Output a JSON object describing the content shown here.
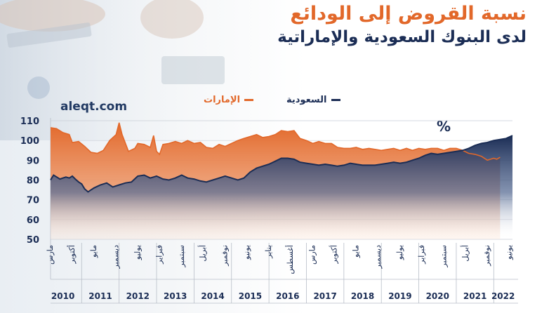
{
  "title": "نسبة القروض إلى الودائع",
  "subtitle": "لدى البنوك السعودية والإماراتية",
  "source": "aleqt.com",
  "unit": "%",
  "colors": {
    "saudi": "#1b2d55",
    "uae": "#e2682a",
    "axis_text": "#1b2d55"
  },
  "chart_data": {
    "type": "area",
    "ylim": [
      50,
      110
    ],
    "yticks": [
      110,
      100,
      90,
      80,
      70,
      60,
      50
    ],
    "grid": true,
    "legend_placement": "top",
    "xlim": [
      2010.17,
      2022.5
    ],
    "x_tick_labels": [
      {
        "x": 2010.17,
        "label": "مارس"
      },
      {
        "x": 2010.75,
        "label": "أكتوبر"
      },
      {
        "x": 2011.33,
        "label": "مايو"
      },
      {
        "x": 2011.92,
        "label": "ديسمبر"
      },
      {
        "x": 2012.5,
        "label": "يوليو"
      },
      {
        "x": 2013.08,
        "label": "فبراير"
      },
      {
        "x": 2013.67,
        "label": "سبتمبر"
      },
      {
        "x": 2014.25,
        "label": "أبريل"
      },
      {
        "x": 2014.83,
        "label": "نوفمبر"
      },
      {
        "x": 2015.42,
        "label": "يونيو"
      },
      {
        "x": 2016.0,
        "label": "يناير"
      },
      {
        "x": 2016.58,
        "label": "أغسطس"
      },
      {
        "x": 2017.17,
        "label": "مارس"
      },
      {
        "x": 2017.75,
        "label": "أكتوبر"
      },
      {
        "x": 2018.33,
        "label": "مايو"
      },
      {
        "x": 2018.92,
        "label": "ديسمبر"
      },
      {
        "x": 2019.5,
        "label": "يوليو"
      },
      {
        "x": 2020.08,
        "label": "فبراير"
      },
      {
        "x": 2020.67,
        "label": "سبتمبر"
      },
      {
        "x": 2021.25,
        "label": "أبريل"
      },
      {
        "x": 2021.83,
        "label": "نوفمبر"
      },
      {
        "x": 2022.42,
        "label": "يونيو"
      }
    ],
    "year_labels": [
      {
        "x": 2010.5,
        "label": "2010"
      },
      {
        "x": 2011.5,
        "label": "2011"
      },
      {
        "x": 2012.5,
        "label": "2012"
      },
      {
        "x": 2013.5,
        "label": "2013"
      },
      {
        "x": 2014.5,
        "label": "2014"
      },
      {
        "x": 2015.5,
        "label": "2015"
      },
      {
        "x": 2016.5,
        "label": "2016"
      },
      {
        "x": 2017.5,
        "label": "2017"
      },
      {
        "x": 2018.5,
        "label": "2018"
      },
      {
        "x": 2019.5,
        "label": "2019"
      },
      {
        "x": 2020.5,
        "label": "2020"
      },
      {
        "x": 2021.5,
        "label": "2021"
      },
      {
        "x": 2022.25,
        "label": "2022"
      }
    ],
    "series": [
      {
        "name": "الإمارات",
        "color": "#e2682a",
        "points": [
          [
            2010.17,
            106.5
          ],
          [
            2010.33,
            106
          ],
          [
            2010.5,
            104
          ],
          [
            2010.67,
            103
          ],
          [
            2010.75,
            99
          ],
          [
            2010.92,
            99.5
          ],
          [
            2011.08,
            97
          ],
          [
            2011.25,
            94
          ],
          [
            2011.42,
            93.5
          ],
          [
            2011.58,
            95
          ],
          [
            2011.75,
            100
          ],
          [
            2011.92,
            103
          ],
          [
            2012.0,
            109
          ],
          [
            2012.08,
            103
          ],
          [
            2012.25,
            94.5
          ],
          [
            2012.42,
            96
          ],
          [
            2012.5,
            98.5
          ],
          [
            2012.67,
            98
          ],
          [
            2012.83,
            96.5
          ],
          [
            2012.92,
            102.5
          ],
          [
            2013.0,
            94.5
          ],
          [
            2013.08,
            93
          ],
          [
            2013.17,
            98
          ],
          [
            2013.33,
            98.5
          ],
          [
            2013.5,
            99.5
          ],
          [
            2013.67,
            98.5
          ],
          [
            2013.83,
            100
          ],
          [
            2014.0,
            98.5
          ],
          [
            2014.17,
            99
          ],
          [
            2014.33,
            96.5
          ],
          [
            2014.5,
            96
          ],
          [
            2014.67,
            98
          ],
          [
            2014.83,
            97
          ],
          [
            2015.0,
            98.5
          ],
          [
            2015.17,
            100
          ],
          [
            2015.33,
            101
          ],
          [
            2015.5,
            102
          ],
          [
            2015.67,
            103
          ],
          [
            2015.83,
            101.5
          ],
          [
            2016.0,
            102
          ],
          [
            2016.17,
            103
          ],
          [
            2016.33,
            105
          ],
          [
            2016.5,
            104.5
          ],
          [
            2016.67,
            105
          ],
          [
            2016.83,
            101
          ],
          [
            2017.0,
            100
          ],
          [
            2017.17,
            98.5
          ],
          [
            2017.33,
            99.5
          ],
          [
            2017.5,
            98.5
          ],
          [
            2017.67,
            98.5
          ],
          [
            2017.83,
            96.5
          ],
          [
            2018.0,
            96
          ],
          [
            2018.17,
            96
          ],
          [
            2018.33,
            96.5
          ],
          [
            2018.5,
            95.5
          ],
          [
            2018.67,
            96
          ],
          [
            2018.83,
            95.5
          ],
          [
            2019.0,
            95
          ],
          [
            2019.17,
            95.5
          ],
          [
            2019.33,
            96
          ],
          [
            2019.5,
            95
          ],
          [
            2019.67,
            96
          ],
          [
            2019.83,
            95
          ],
          [
            2020.0,
            96
          ],
          [
            2020.17,
            95.5
          ],
          [
            2020.33,
            96
          ],
          [
            2020.5,
            96
          ],
          [
            2020.67,
            95
          ],
          [
            2020.83,
            96
          ],
          [
            2021.0,
            96
          ],
          [
            2021.17,
            95
          ],
          [
            2021.33,
            93.5
          ],
          [
            2021.5,
            93
          ],
          [
            2021.67,
            92
          ],
          [
            2021.83,
            90
          ],
          [
            2022.0,
            91
          ],
          [
            2022.08,
            90.5
          ],
          [
            2022.17,
            91.5
          ]
        ]
      },
      {
        "name": "السعودية",
        "color": "#1b2d55",
        "points": [
          [
            2010.17,
            80
          ],
          [
            2010.25,
            82.5
          ],
          [
            2010.42,
            80.5
          ],
          [
            2010.58,
            81.5
          ],
          [
            2010.67,
            81
          ],
          [
            2010.75,
            82
          ],
          [
            2010.83,
            80.5
          ],
          [
            2010.92,
            79
          ],
          [
            2011.0,
            78
          ],
          [
            2011.08,
            75.5
          ],
          [
            2011.17,
            74
          ],
          [
            2011.33,
            76
          ],
          [
            2011.5,
            77.5
          ],
          [
            2011.67,
            78.5
          ],
          [
            2011.83,
            76.5
          ],
          [
            2012.0,
            77.5
          ],
          [
            2012.17,
            78.5
          ],
          [
            2012.33,
            79
          ],
          [
            2012.5,
            82
          ],
          [
            2012.67,
            82.5
          ],
          [
            2012.83,
            81
          ],
          [
            2013.0,
            82
          ],
          [
            2013.17,
            80.5
          ],
          [
            2013.33,
            80
          ],
          [
            2013.5,
            81
          ],
          [
            2013.67,
            82.5
          ],
          [
            2013.83,
            81
          ],
          [
            2014.0,
            80.5
          ],
          [
            2014.17,
            79.5
          ],
          [
            2014.33,
            79
          ],
          [
            2014.5,
            80
          ],
          [
            2014.67,
            81
          ],
          [
            2014.83,
            82
          ],
          [
            2015.0,
            81
          ],
          [
            2015.17,
            80
          ],
          [
            2015.33,
            81
          ],
          [
            2015.5,
            84
          ],
          [
            2015.67,
            86
          ],
          [
            2015.83,
            87
          ],
          [
            2016.0,
            88
          ],
          [
            2016.17,
            89.5
          ],
          [
            2016.33,
            91
          ],
          [
            2016.5,
            91
          ],
          [
            2016.67,
            90.5
          ],
          [
            2016.83,
            89
          ],
          [
            2017.0,
            88.5
          ],
          [
            2017.17,
            88
          ],
          [
            2017.33,
            87.5
          ],
          [
            2017.5,
            88
          ],
          [
            2017.67,
            87.5
          ],
          [
            2017.83,
            87
          ],
          [
            2018.0,
            87.5
          ],
          [
            2018.17,
            88.5
          ],
          [
            2018.33,
            88
          ],
          [
            2018.5,
            87.5
          ],
          [
            2018.67,
            87.5
          ],
          [
            2018.83,
            87.5
          ],
          [
            2019.0,
            88
          ],
          [
            2019.17,
            88.5
          ],
          [
            2019.33,
            89
          ],
          [
            2019.5,
            88.5
          ],
          [
            2019.67,
            89
          ],
          [
            2019.83,
            90
          ],
          [
            2020.0,
            91
          ],
          [
            2020.17,
            92.5
          ],
          [
            2020.33,
            93.5
          ],
          [
            2020.5,
            93
          ],
          [
            2020.67,
            93.5
          ],
          [
            2020.83,
            94
          ],
          [
            2021.0,
            94.5
          ],
          [
            2021.17,
            95
          ],
          [
            2021.33,
            96
          ],
          [
            2021.5,
            97.5
          ],
          [
            2021.67,
            98.5
          ],
          [
            2021.83,
            99
          ],
          [
            2022.0,
            100
          ],
          [
            2022.17,
            100.5
          ],
          [
            2022.33,
            101
          ],
          [
            2022.5,
            102.5
          ]
        ]
      }
    ]
  }
}
